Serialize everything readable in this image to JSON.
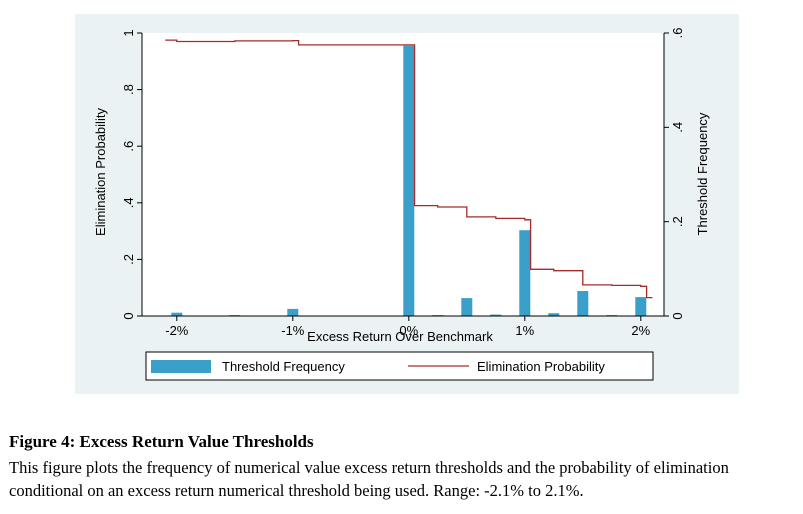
{
  "chart_data": {
    "type": "bar",
    "xlabel": "Excess Return Over Benchmark",
    "ylabel_left": "Elimination Probability",
    "ylabel_right": "Threshold Frequency",
    "x_ticks": [
      "-2%",
      "-1%",
      "0%",
      "1%",
      "2%"
    ],
    "x_tick_values": [
      -2,
      -1,
      0,
      1,
      2
    ],
    "xlim": [
      -2.3,
      2.2
    ],
    "y_left_ticks": [
      "0",
      ".2",
      ".4",
      ".6",
      ".8",
      "1"
    ],
    "y_left_tick_values": [
      0,
      0.2,
      0.4,
      0.6,
      0.8,
      1
    ],
    "ylim_left": [
      0,
      1
    ],
    "y_right_ticks": [
      "0",
      ".2",
      ".4",
      ".6"
    ],
    "y_right_tick_values": [
      0,
      0.2,
      0.4,
      0.6
    ],
    "ylim_right": [
      0,
      0.6
    ],
    "series": [
      {
        "name": "Threshold Frequency",
        "kind": "bar",
        "axis": "right",
        "color": "#3a9fc9",
        "x": [
          -2.0,
          -1.5,
          -1.0,
          0.0,
          0.25,
          0.5,
          0.75,
          1.0,
          1.25,
          1.5,
          1.75,
          2.0
        ],
        "values": [
          0.007,
          0.002,
          0.015,
          0.573,
          0.002,
          0.038,
          0.003,
          0.182,
          0.006,
          0.053,
          0.002,
          0.04
        ]
      },
      {
        "name": "Elimination Probability",
        "kind": "step",
        "axis": "left",
        "color": "#a52a2a",
        "x": [
          -2.1,
          -2.0,
          -1.5,
          -1.0,
          -0.95,
          0.0,
          0.05,
          0.25,
          0.5,
          0.75,
          1.0,
          1.05,
          1.25,
          1.5,
          1.75,
          2.0,
          2.05,
          2.1
        ],
        "values": [
          0.975,
          0.97,
          0.972,
          0.973,
          0.958,
          0.958,
          0.39,
          0.385,
          0.35,
          0.345,
          0.34,
          0.165,
          0.16,
          0.11,
          0.108,
          0.105,
          0.065,
          0.065
        ]
      }
    ],
    "legend_position": "bottom"
  },
  "caption": {
    "title": "Figure 4: Excess Return Value Thresholds",
    "body": "This figure plots the frequency of numerical value excess return thresholds and the probability of elimination conditional on an excess return numerical threshold being used. Range: -2.1% to 2.1%."
  }
}
